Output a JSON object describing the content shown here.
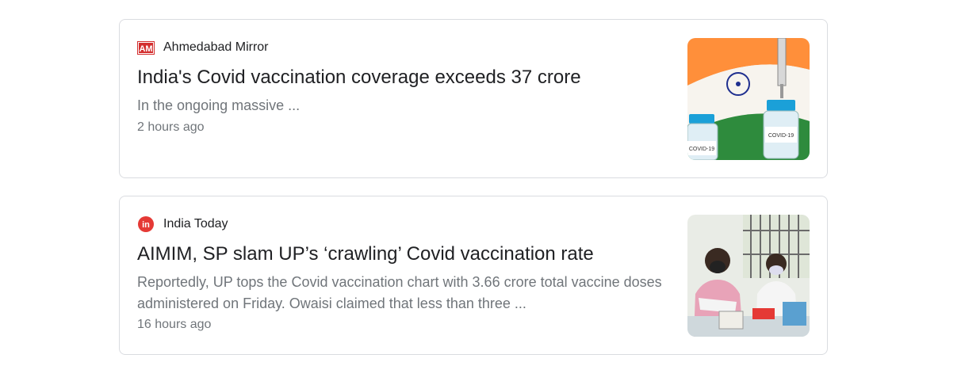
{
  "results": [
    {
      "source": "Ahmedabad Mirror",
      "source_logo_text": "AM",
      "headline": "India's Covid vaccination coverage exceeds 37 crore",
      "snippet": "In the ongoing massive ...",
      "time": "2 hours ago",
      "thumbnail_icon": "vaccine-vials-india-flag-image",
      "vial_label": "COVID-19"
    },
    {
      "source": "India Today",
      "source_logo_text": "in",
      "headline": "AIMIM, SP slam UP’s ‘crawling’ Covid vaccination rate",
      "snippet": "Reportedly, UP tops the Covid vaccination chart with 3.66 crore total vaccine doses administered on Friday. Owaisi claimed that less than three ...",
      "time": "16 hours ago",
      "thumbnail_icon": "vaccination-centre-health-workers-image"
    }
  ],
  "colors": {
    "ahmedabad_mirror_red": "#d32f2f",
    "india_today_red": "#e53935",
    "headline": "#202124",
    "meta": "#70757a",
    "border": "#dadce0"
  }
}
